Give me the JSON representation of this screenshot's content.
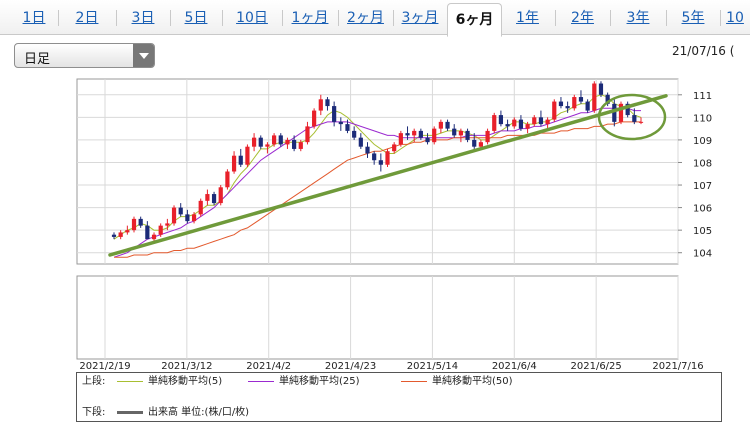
{
  "tabs": [
    {
      "label": "1日"
    },
    {
      "label": "2日"
    },
    {
      "label": "3日"
    },
    {
      "label": "5日"
    },
    {
      "label": "10日"
    },
    {
      "label": "1ヶ月"
    },
    {
      "label": "2ヶ月"
    },
    {
      "label": "3ヶ月"
    },
    {
      "label": "6ヶ月",
      "active": true
    },
    {
      "label": "1年"
    },
    {
      "label": "2年"
    },
    {
      "label": "3年"
    },
    {
      "label": "5年"
    },
    {
      "label": "10"
    }
  ],
  "period_select": {
    "value": "日足"
  },
  "date_label": "21/07/16 (",
  "colors": {
    "up": "#e8202a",
    "down": "#1c2b78",
    "sma5": "#a8bf32",
    "sma25": "#9b2ad0",
    "sma50": "#e35a2e",
    "trendline": "#6f9a3a",
    "volume": "#666666"
  },
  "chart_data": {
    "type": "candlestick",
    "y_ticks": [
      "104",
      "105",
      "106",
      "107",
      "108",
      "109",
      "110",
      "111"
    ],
    "ylim": [
      103.5,
      111.7
    ],
    "x_ticks": [
      "2021/2/19",
      "2021/3/12",
      "2021/4/2",
      "2021/4/23",
      "2021/5/14",
      "2021/6/4",
      "2021/6/25",
      "2021/7/16"
    ],
    "candles": [
      [
        104.8,
        104.9,
        104.6,
        104.7
      ],
      [
        104.7,
        105.0,
        104.6,
        104.9
      ],
      [
        104.9,
        105.2,
        104.8,
        105.0
      ],
      [
        105.0,
        105.6,
        104.9,
        105.5
      ],
      [
        105.5,
        105.6,
        105.1,
        105.2
      ],
      [
        105.2,
        105.4,
        104.6,
        104.6
      ],
      [
        104.6,
        104.9,
        104.5,
        104.8
      ],
      [
        104.8,
        105.3,
        104.7,
        105.2
      ],
      [
        105.2,
        105.5,
        105.0,
        105.3
      ],
      [
        105.3,
        106.1,
        105.2,
        106.0
      ],
      [
        106.0,
        106.2,
        105.6,
        105.7
      ],
      [
        105.7,
        105.9,
        105.3,
        105.4
      ],
      [
        105.4,
        105.8,
        105.3,
        105.7
      ],
      [
        105.7,
        106.4,
        105.6,
        106.3
      ],
      [
        106.3,
        106.8,
        106.1,
        106.6
      ],
      [
        106.6,
        106.7,
        106.1,
        106.2
      ],
      [
        106.2,
        107.0,
        106.1,
        106.9
      ],
      [
        106.9,
        107.7,
        106.8,
        107.6
      ],
      [
        107.6,
        108.5,
        107.5,
        108.3
      ],
      [
        108.3,
        108.6,
        107.8,
        107.9
      ],
      [
        107.9,
        108.8,
        107.8,
        108.7
      ],
      [
        108.7,
        109.3,
        108.5,
        109.1
      ],
      [
        109.1,
        109.2,
        108.6,
        108.7
      ],
      [
        108.7,
        108.9,
        108.4,
        108.8
      ],
      [
        108.8,
        109.3,
        108.7,
        109.2
      ],
      [
        109.2,
        109.3,
        108.7,
        108.8
      ],
      [
        108.8,
        109.1,
        108.6,
        109.0
      ],
      [
        109.0,
        109.2,
        108.5,
        108.6
      ],
      [
        108.6,
        109.0,
        108.5,
        108.9
      ],
      [
        108.9,
        109.8,
        108.8,
        109.6
      ],
      [
        109.6,
        110.4,
        109.5,
        110.3
      ],
      [
        110.3,
        111.0,
        110.1,
        110.8
      ],
      [
        110.8,
        110.9,
        110.3,
        110.5
      ],
      [
        110.5,
        110.7,
        109.6,
        109.8
      ],
      [
        109.8,
        110.0,
        109.4,
        109.7
      ],
      [
        109.7,
        109.9,
        109.3,
        109.4
      ],
      [
        109.4,
        109.6,
        109.0,
        109.1
      ],
      [
        109.1,
        109.3,
        108.6,
        108.7
      ],
      [
        108.7,
        108.9,
        108.2,
        108.4
      ],
      [
        108.4,
        108.5,
        107.9,
        108.1
      ],
      [
        108.1,
        108.4,
        107.6,
        107.9
      ],
      [
        107.9,
        108.6,
        107.8,
        108.5
      ],
      [
        108.5,
        108.9,
        108.4,
        108.8
      ],
      [
        108.8,
        109.4,
        108.7,
        109.3
      ],
      [
        109.3,
        109.6,
        109.0,
        109.2
      ],
      [
        109.2,
        109.5,
        108.9,
        109.4
      ],
      [
        109.4,
        109.5,
        109.0,
        109.1
      ],
      [
        109.1,
        109.3,
        108.8,
        108.9
      ],
      [
        108.9,
        109.6,
        108.8,
        109.5
      ],
      [
        109.5,
        109.9,
        109.3,
        109.8
      ],
      [
        109.8,
        109.9,
        109.4,
        109.5
      ],
      [
        109.5,
        109.7,
        109.1,
        109.2
      ],
      [
        109.2,
        109.5,
        108.9,
        109.4
      ],
      [
        109.4,
        109.5,
        108.9,
        109.0
      ],
      [
        109.0,
        109.3,
        108.6,
        108.7
      ],
      [
        108.7,
        109.0,
        108.6,
        108.9
      ],
      [
        108.9,
        109.5,
        108.8,
        109.4
      ],
      [
        109.4,
        110.2,
        109.3,
        110.1
      ],
      [
        110.1,
        110.3,
        109.6,
        109.7
      ],
      [
        109.7,
        109.9,
        109.4,
        109.6
      ],
      [
        109.6,
        110.0,
        109.5,
        109.9
      ],
      [
        109.9,
        110.1,
        109.4,
        109.5
      ],
      [
        109.5,
        109.8,
        109.3,
        109.7
      ],
      [
        109.7,
        110.1,
        109.6,
        110.0
      ],
      [
        110.0,
        110.3,
        109.6,
        109.7
      ],
      [
        109.7,
        110.0,
        109.5,
        109.9
      ],
      [
        109.9,
        110.8,
        109.8,
        110.7
      ],
      [
        110.7,
        110.9,
        110.4,
        110.5
      ],
      [
        110.5,
        110.7,
        110.2,
        110.4
      ],
      [
        110.4,
        111.0,
        110.3,
        110.9
      ],
      [
        110.9,
        111.2,
        110.6,
        110.7
      ],
      [
        110.7,
        110.8,
        110.2,
        110.3
      ],
      [
        110.3,
        111.6,
        110.2,
        111.5
      ],
      [
        111.5,
        111.6,
        110.9,
        111.0
      ],
      [
        111.0,
        111.1,
        110.5,
        110.6
      ],
      [
        110.6,
        110.8,
        109.6,
        109.8
      ],
      [
        109.8,
        110.7,
        109.7,
        110.6
      ],
      [
        110.6,
        110.7,
        110.0,
        110.1
      ],
      [
        110.1,
        110.4,
        109.7,
        109.8
      ],
      [
        109.8,
        110.0,
        109.7,
        109.8
      ]
    ],
    "series": [
      {
        "name": "単純移動平均(5)",
        "values": [
          104.6,
          104.8,
          105.0,
          105.1,
          105.3,
          105.2,
          105.0,
          105.0,
          105.1,
          105.4,
          105.6,
          105.6,
          105.7,
          105.9,
          106.1,
          106.1,
          106.3,
          106.6,
          107.1,
          107.5,
          107.8,
          108.2,
          108.6,
          108.6,
          108.8,
          108.9,
          108.9,
          108.9,
          108.9,
          109.0,
          109.3,
          109.7,
          110.1,
          110.3,
          110.2,
          110.0,
          109.7,
          109.4,
          109.1,
          108.8,
          108.6,
          108.4,
          108.4,
          108.6,
          108.8,
          109.0,
          109.2,
          109.2,
          109.2,
          109.3,
          109.4,
          109.4,
          109.4,
          109.3,
          109.2,
          109.0,
          109.0,
          109.2,
          109.4,
          109.6,
          109.8,
          109.8,
          109.7,
          109.7,
          109.8,
          109.8,
          110.0,
          110.2,
          110.3,
          110.5,
          110.6,
          110.6,
          110.9,
          111.0,
          110.9,
          110.6,
          110.5,
          110.4,
          110.1,
          110.0
        ]
      },
      {
        "name": "単純移動平均(25)",
        "values": [
          103.8,
          103.9,
          104.0,
          104.2,
          104.4,
          104.6,
          104.7,
          104.8,
          104.9,
          105.0,
          105.1,
          105.3,
          105.4,
          105.6,
          105.8,
          106.0,
          106.3,
          106.6,
          106.9,
          107.2,
          107.5,
          107.8,
          108.1,
          108.3,
          108.5,
          108.7,
          108.9,
          109.1,
          109.3,
          109.5,
          109.6,
          109.7,
          109.8,
          109.8,
          109.8,
          109.8,
          109.7,
          109.6,
          109.5,
          109.4,
          109.3,
          109.2,
          109.2,
          109.1,
          109.1,
          109.1,
          109.1,
          109.1,
          109.1,
          109.1,
          109.1,
          109.1,
          109.1,
          109.2,
          109.2,
          109.2,
          109.2,
          109.3,
          109.4,
          109.4,
          109.4,
          109.5,
          109.5,
          109.6,
          109.6,
          109.7,
          109.8,
          109.9,
          110.0,
          110.1,
          110.2,
          110.2,
          110.3,
          110.4,
          110.4,
          110.4,
          110.4,
          110.4,
          110.3,
          110.3
        ]
      },
      {
        "name": "単純移動平均(50)",
        "values": [
          103.8,
          103.8,
          103.8,
          103.9,
          103.9,
          103.9,
          104.0,
          104.0,
          104.0,
          104.1,
          104.1,
          104.2,
          104.2,
          104.3,
          104.4,
          104.5,
          104.6,
          104.7,
          104.8,
          105.0,
          105.1,
          105.3,
          105.5,
          105.7,
          105.9,
          106.1,
          106.3,
          106.5,
          106.7,
          106.9,
          107.1,
          107.3,
          107.5,
          107.7,
          107.9,
          108.1,
          108.2,
          108.3,
          108.4,
          108.5,
          108.5,
          108.6,
          108.7,
          108.8,
          108.8,
          108.9,
          108.9,
          109.0,
          109.0,
          109.0,
          109.0,
          109.1,
          109.1,
          109.1,
          109.1,
          109.1,
          109.1,
          109.1,
          109.1,
          109.2,
          109.2,
          109.2,
          109.2,
          109.2,
          109.3,
          109.3,
          109.3,
          109.4,
          109.4,
          109.5,
          109.5,
          109.5,
          109.6,
          109.6,
          109.7,
          109.7,
          109.8,
          109.8,
          109.8,
          109.8
        ]
      }
    ],
    "trendline": [
      {
        "i": 0,
        "y": 103.9
      },
      {
        "i": 79,
        "y": 111.0
      }
    ],
    "legend_upper": {
      "prefix": "上段:",
      "items": [
        "単純移動平均(5)",
        "単純移動平均(25)",
        "単純移動平均(50)"
      ]
    },
    "legend_lower": {
      "prefix": "下段:",
      "text": "出来高 単位:(株/口/枚)"
    }
  }
}
